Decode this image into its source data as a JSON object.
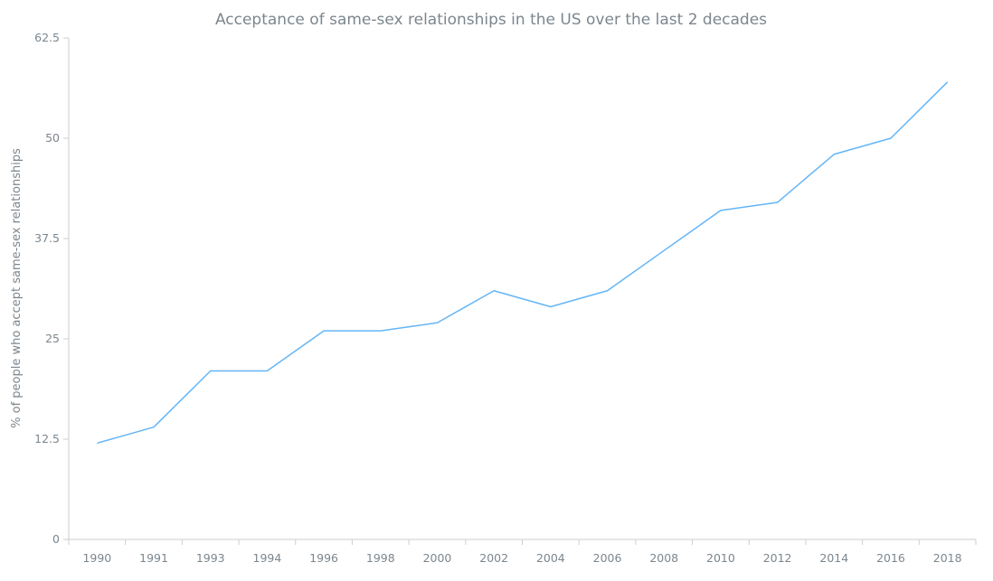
{
  "chart_data": {
    "type": "line",
    "title": "Acceptance of same-sex relationships in the US over the last 2 decades",
    "xlabel": "",
    "ylabel": "% of people who accept same-sex relationships",
    "categories": [
      "1990",
      "1991",
      "1993",
      "1994",
      "1996",
      "1998",
      "2000",
      "2002",
      "2004",
      "2006",
      "2008",
      "2010",
      "2012",
      "2014",
      "2016",
      "2018"
    ],
    "series": [
      {
        "values": [
          12,
          14,
          21,
          21,
          26,
          26,
          27,
          31,
          29,
          31,
          36,
          41,
          42,
          48,
          50,
          57
        ],
        "color": "#64b5f6"
      }
    ],
    "ylim": [
      0,
      62.5
    ],
    "yticks": [
      "0",
      "12.5",
      "25",
      "37.5",
      "50",
      "62.5"
    ],
    "grid": false,
    "legend": "none"
  }
}
